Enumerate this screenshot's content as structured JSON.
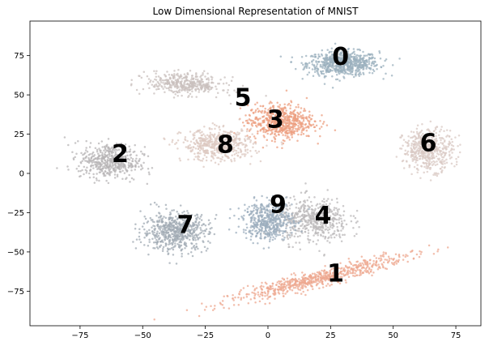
{
  "chart_data": {
    "type": "scatter",
    "title": "Low Dimensional Representation of MNIST",
    "xlabel": "",
    "ylabel": "",
    "xlim": [
      -95,
      85
    ],
    "ylim": [
      -97,
      97
    ],
    "xticks": [
      -75,
      -50,
      -25,
      0,
      25,
      50,
      75
    ],
    "yticks": [
      -75,
      -50,
      -25,
      0,
      25,
      50,
      75
    ],
    "xtick_labels": [
      "−75",
      "−50",
      "−25",
      "0",
      "25",
      "50",
      "75"
    ],
    "ytick_labels": [
      "−75",
      "−50",
      "−25",
      "0",
      "25",
      "50",
      "75"
    ],
    "grid": false,
    "series": [
      {
        "name": "0",
        "label_x": 29,
        "label_y": 74,
        "center_x": 30,
        "center_y": 70,
        "spread_x": 13,
        "spread_y": 7,
        "angle_deg": 0,
        "count": 700,
        "color": "#9bb0bd"
      },
      {
        "name": "1",
        "label_x": 27,
        "label_y": -64,
        "center_x": 20,
        "center_y": -67,
        "spread_x": 34,
        "spread_y": 4.5,
        "angle_deg": 22,
        "count": 700,
        "color": "#eda890"
      },
      {
        "name": "2",
        "label_x": -59,
        "label_y": 12,
        "center_x": -63,
        "center_y": 8,
        "spread_x": 11,
        "spread_y": 10,
        "angle_deg": -10,
        "count": 500,
        "color": "#b7b4b6"
      },
      {
        "name": "3",
        "label_x": 3,
        "label_y": 34,
        "center_x": 5,
        "center_y": 33,
        "spread_x": 12,
        "spread_y": 10,
        "angle_deg": 0,
        "count": 600,
        "color": "#ec9f80"
      },
      {
        "name": "4",
        "label_x": 22,
        "label_y": -27,
        "center_x": 18,
        "center_y": -30,
        "spread_x": 13,
        "spread_y": 13,
        "angle_deg": 0,
        "count": 500,
        "color": "#bbb8ba"
      },
      {
        "name": "5",
        "label_x": -10,
        "label_y": 48,
        "center_x": -33,
        "center_y": 57,
        "spread_x": 14,
        "spread_y": 6,
        "angle_deg": -8,
        "count": 400,
        "color": "#c9c0bd"
      },
      {
        "name": "6",
        "label_x": 64,
        "label_y": 19,
        "center_x": 64,
        "center_y": 15,
        "spread_x": 9,
        "spread_y": 12,
        "angle_deg": 0,
        "count": 500,
        "color": "#d9c9c4"
      },
      {
        "name": "7",
        "label_x": -33,
        "label_y": -33,
        "center_x": -37,
        "center_y": -37,
        "spread_x": 12,
        "spread_y": 11,
        "angle_deg": 0,
        "count": 600,
        "color": "#a2abb4"
      },
      {
        "name": "8",
        "label_x": -17,
        "label_y": 18,
        "center_x": -20,
        "center_y": 18,
        "spread_x": 13,
        "spread_y": 9,
        "angle_deg": 0,
        "count": 500,
        "color": "#dcc8c0"
      },
      {
        "name": "9",
        "label_x": 4,
        "label_y": -20,
        "center_x": 0,
        "center_y": -30,
        "spread_x": 9,
        "spread_y": 11,
        "angle_deg": 0,
        "count": 500,
        "color": "#9caebd"
      }
    ]
  }
}
